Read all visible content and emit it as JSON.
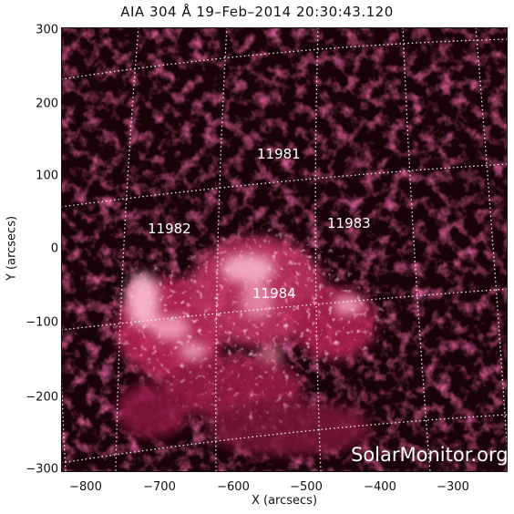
{
  "title": "AIA 304 Å 19–Feb–2014 20:30:43.120",
  "axes": {
    "xlabel": "X (arcsecs)",
    "ylabel": "Y (arcsecs)",
    "xticks": [
      "−800",
      "−700",
      "−600",
      "−500",
      "−400",
      "−300"
    ],
    "yticks": [
      "300",
      "200",
      "100",
      "0",
      "−100",
      "−200",
      "−300"
    ]
  },
  "regions": [
    "11981",
    "11982",
    "11983",
    "11984"
  ],
  "watermark": "SolarMonitor.org",
  "colors": {
    "image_base": "#1a0308",
    "plasma": "#c0275a",
    "bright": "#ffd6e2",
    "grid": "#ffffff"
  }
}
